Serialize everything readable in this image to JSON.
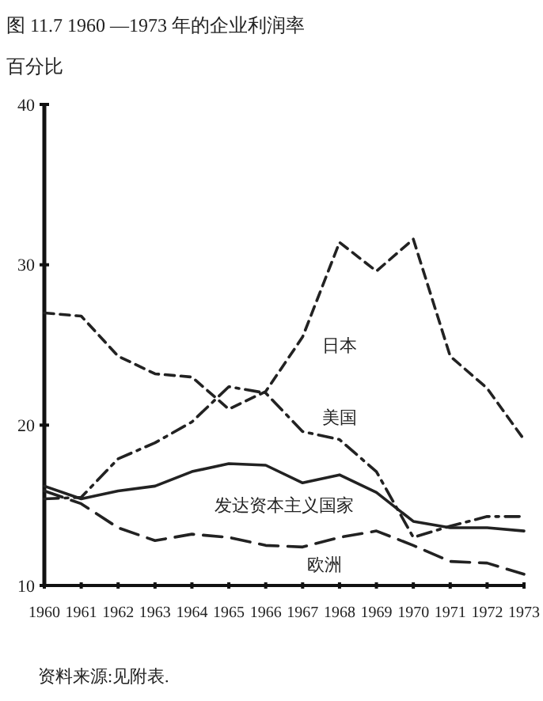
{
  "chart_data": {
    "type": "line",
    "title": "图 11.7 1960 —1973 年的企业利润率",
    "ylabel": "百分比",
    "x": [
      1960,
      1961,
      1962,
      1963,
      1964,
      1965,
      1966,
      1967,
      1968,
      1969,
      1970,
      1971,
      1972,
      1973
    ],
    "xlim": [
      1960,
      1973
    ],
    "xticks": [
      1960,
      1961,
      1962,
      1963,
      1964,
      1965,
      1966,
      1967,
      1968,
      1969,
      1970,
      1971,
      1972,
      1973
    ],
    "ylim": [
      10,
      40
    ],
    "yticks": [
      10,
      20,
      30,
      40
    ],
    "grid": false,
    "legend": false,
    "marker": "none",
    "series": [
      {
        "name": "日本",
        "color": "#222222",
        "line_style": "dashed",
        "values": [
          27.0,
          26.8,
          24.3,
          23.2,
          23.0,
          21.0,
          22.1,
          25.5,
          31.4,
          29.6,
          31.6,
          24.3,
          22.3,
          19.1
        ]
      },
      {
        "name": "美国",
        "color": "#222222",
        "line_style": "dashdot",
        "values": [
          15.4,
          15.5,
          17.9,
          18.9,
          20.2,
          22.4,
          22.0,
          19.6,
          19.1,
          17.1,
          13.0,
          13.7,
          14.3,
          14.3
        ]
      },
      {
        "name": "发达资本主义国家",
        "color": "#222222",
        "line_style": "solid",
        "values": [
          16.2,
          15.4,
          15.9,
          16.2,
          17.1,
          17.6,
          17.5,
          16.4,
          16.9,
          15.8,
          14.0,
          13.6,
          13.6,
          13.4
        ]
      },
      {
        "name": "欧洲",
        "color": "#222222",
        "line_style": "longdash",
        "values": [
          15.9,
          15.1,
          13.6,
          12.8,
          13.2,
          13.0,
          12.5,
          12.4,
          13.0,
          13.4,
          12.5,
          11.5,
          11.4,
          10.7
        ]
      }
    ],
    "annotations": [
      "资料来源:见附表."
    ]
  }
}
